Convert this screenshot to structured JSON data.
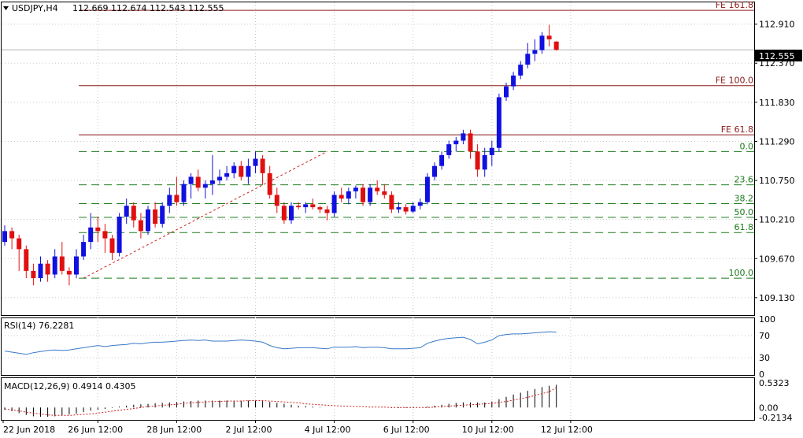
{
  "header": {
    "symbol": "USDJPY,H4",
    "ohlc": "112.669 112.674 112.543 112.555"
  },
  "last_price": "112.555",
  "colors": {
    "bull": "#1010e0",
    "bear": "#e01010",
    "fe": "#8b1a1a",
    "fib": "#1a7a1a",
    "rsi": "#3a78c8",
    "macd_signal": "#cc2222",
    "zigzag": "#cc2222",
    "grid": "#c8c8c8"
  },
  "chart_data": [
    {
      "type": "candlestick",
      "title": "USDJPY,H4",
      "ylim": [
        108.9,
        113.2
      ],
      "y_ticks": [
        "112.910",
        "112.370",
        "111.830",
        "111.290",
        "110.750",
        "110.210",
        "109.670",
        "109.130"
      ],
      "x_ticks": [
        "22 Jun 2018",
        "26 Jun 12:00",
        "28 Jun 12:00",
        "2 Jul 12:00",
        "4 Jul 12:00",
        "6 Jul 12:00",
        "10 Jul 12:00",
        "12 Jul 12:00"
      ],
      "candles": [
        [
          109.9,
          110.13,
          109.85,
          110.05
        ],
        [
          110.05,
          110.1,
          109.8,
          109.95
        ],
        [
          109.95,
          110.0,
          109.5,
          109.8
        ],
        [
          109.8,
          109.85,
          109.4,
          109.5
        ],
        [
          109.5,
          109.6,
          109.3,
          109.4
        ],
        [
          109.4,
          109.7,
          109.35,
          109.6
        ],
        [
          109.6,
          109.65,
          109.35,
          109.45
        ],
        [
          109.45,
          109.8,
          109.4,
          109.7
        ],
        [
          109.7,
          109.9,
          109.45,
          109.5
        ],
        [
          109.5,
          109.55,
          109.3,
          109.45
        ],
        [
          109.45,
          109.8,
          109.4,
          109.7
        ],
        [
          109.7,
          110.0,
          109.65,
          109.9
        ],
        [
          109.9,
          110.3,
          109.8,
          110.1
        ],
        [
          110.1,
          110.25,
          109.9,
          110.05
        ],
        [
          110.05,
          110.15,
          109.75,
          109.95
        ],
        [
          109.95,
          110.0,
          109.65,
          109.75
        ],
        [
          109.75,
          110.3,
          109.7,
          110.25
        ],
        [
          110.25,
          110.5,
          110.15,
          110.4
        ],
        [
          110.4,
          110.45,
          110.1,
          110.2
        ],
        [
          110.2,
          110.3,
          109.95,
          110.05
        ],
        [
          110.05,
          110.4,
          110.0,
          110.35
        ],
        [
          110.35,
          110.45,
          110.1,
          110.15
        ],
        [
          110.15,
          110.45,
          110.1,
          110.4
        ],
        [
          110.4,
          110.65,
          110.3,
          110.55
        ],
        [
          110.55,
          110.8,
          110.4,
          110.45
        ],
        [
          110.45,
          110.75,
          110.4,
          110.7
        ],
        [
          110.7,
          110.85,
          110.5,
          110.8
        ],
        [
          110.8,
          110.9,
          110.6,
          110.65
        ],
        [
          110.65,
          110.75,
          110.5,
          110.7
        ],
        [
          110.7,
          111.1,
          110.55,
          110.75
        ],
        [
          110.75,
          110.9,
          110.7,
          110.8
        ],
        [
          110.8,
          110.95,
          110.75,
          110.85
        ],
        [
          110.85,
          111.0,
          110.78,
          110.95
        ],
        [
          110.95,
          111.02,
          110.75,
          110.8
        ],
        [
          110.8,
          111.05,
          110.7,
          110.95
        ],
        [
          110.95,
          111.15,
          110.85,
          111.05
        ],
        [
          111.05,
          111.1,
          110.7,
          110.85
        ],
        [
          110.85,
          110.95,
          110.5,
          110.55
        ],
        [
          110.55,
          110.65,
          110.3,
          110.4
        ],
        [
          110.4,
          110.45,
          110.15,
          110.2
        ],
        [
          110.2,
          110.45,
          110.15,
          110.4
        ],
        [
          110.4,
          110.45,
          110.35,
          110.38
        ],
        [
          110.38,
          110.45,
          110.3,
          110.42
        ],
        [
          110.42,
          110.5,
          110.35,
          110.38
        ],
        [
          110.38,
          110.4,
          110.3,
          110.35
        ],
        [
          110.35,
          110.4,
          110.2,
          110.3
        ],
        [
          110.3,
          110.6,
          110.25,
          110.55
        ],
        [
          110.55,
          110.65,
          110.45,
          110.5
        ],
        [
          110.5,
          110.65,
          110.42,
          110.6
        ],
        [
          110.6,
          110.68,
          110.5,
          110.65
        ],
        [
          110.65,
          110.7,
          110.4,
          110.45
        ],
        [
          110.45,
          110.7,
          110.4,
          110.65
        ],
        [
          110.65,
          110.75,
          110.55,
          110.6
        ],
        [
          110.6,
          110.7,
          110.5,
          110.55
        ],
        [
          110.55,
          110.6,
          110.3,
          110.35
        ],
        [
          110.35,
          110.45,
          110.3,
          110.38
        ],
        [
          110.38,
          110.42,
          110.28,
          110.32
        ],
        [
          110.32,
          110.45,
          110.3,
          110.4
        ],
        [
          110.4,
          110.5,
          110.35,
          110.45
        ],
        [
          110.45,
          110.85,
          110.42,
          110.8
        ],
        [
          110.8,
          111.0,
          110.75,
          110.95
        ],
        [
          110.95,
          111.15,
          110.9,
          111.1
        ],
        [
          111.1,
          111.3,
          111.05,
          111.25
        ],
        [
          111.25,
          111.35,
          111.15,
          111.3
        ],
        [
          111.3,
          111.45,
          111.25,
          111.4
        ],
        [
          111.4,
          111.45,
          111.05,
          111.15
        ],
        [
          111.15,
          111.25,
          110.8,
          110.9
        ],
        [
          110.9,
          111.2,
          110.8,
          111.1
        ],
        [
          111.1,
          111.3,
          110.95,
          111.2
        ],
        [
          111.2,
          111.95,
          111.15,
          111.9
        ],
        [
          111.9,
          112.1,
          111.85,
          112.05
        ],
        [
          112.05,
          112.25,
          112.0,
          112.2
        ],
        [
          112.2,
          112.4,
          112.15,
          112.35
        ],
        [
          112.35,
          112.65,
          112.3,
          112.5
        ],
        [
          112.5,
          112.7,
          112.4,
          112.55
        ],
        [
          112.55,
          112.8,
          112.5,
          112.75
        ],
        [
          112.75,
          112.9,
          112.6,
          112.7
        ],
        [
          112.669,
          112.674,
          112.543,
          112.555
        ]
      ],
      "levels": [
        {
          "label": "FE 161.8",
          "value": 113.1,
          "kind": "fe"
        },
        {
          "label": "FE 100.0",
          "value": 112.06,
          "kind": "fe"
        },
        {
          "label": "FE 61.8",
          "value": 111.38,
          "kind": "fe"
        },
        {
          "label": "0.0",
          "value": 111.15,
          "kind": "fib"
        },
        {
          "label": "23.6",
          "value": 110.69,
          "kind": "fib"
        },
        {
          "label": "38.2",
          "value": 110.43,
          "kind": "fib"
        },
        {
          "label": "50.0",
          "value": 110.24,
          "kind": "fib"
        },
        {
          "label": "61.8",
          "value": 110.03,
          "kind": "fib"
        },
        {
          "label": "100.0",
          "value": 109.4,
          "kind": "fib"
        }
      ],
      "zigzag": [
        [
          11,
          109.4
        ],
        [
          45,
          111.15
        ]
      ],
      "current_price": 112.555
    },
    {
      "type": "line",
      "title": "RSI(14) 76.2281",
      "ylim": [
        0,
        100
      ],
      "y_ticks": [
        "100",
        "70",
        "30",
        "0"
      ],
      "values": [
        42,
        40,
        38,
        36,
        39,
        41,
        43,
        44,
        43,
        44,
        46,
        48,
        50,
        52,
        50,
        52,
        53,
        54,
        56,
        55,
        57,
        58,
        58,
        59,
        60,
        61,
        62,
        61,
        62,
        60,
        60,
        60,
        61,
        62,
        61,
        60,
        58,
        52,
        48,
        46,
        47,
        48,
        48,
        48,
        47,
        46,
        49,
        49,
        49,
        50,
        48,
        49,
        49,
        48,
        46,
        46,
        46,
        47,
        48,
        56,
        60,
        63,
        65,
        66,
        67,
        63,
        55,
        58,
        62,
        70,
        72,
        73,
        73,
        74,
        75,
        76,
        77,
        76.2281
      ]
    },
    {
      "type": "bar",
      "title": "MACD(12,26,9) 0.4914 0.4305",
      "y_ticks": [
        "0.5323",
        "0.00",
        "-0.2134"
      ],
      "ylim": [
        -0.25,
        0.6
      ],
      "values": [
        -0.05,
        -0.08,
        -0.12,
        -0.16,
        -0.19,
        -0.2,
        -0.2,
        -0.19,
        -0.17,
        -0.15,
        -0.13,
        -0.1,
        -0.07,
        -0.05,
        -0.03,
        -0.01,
        0.02,
        0.04,
        0.06,
        0.07,
        0.08,
        0.09,
        0.1,
        0.11,
        0.12,
        0.13,
        0.14,
        0.15,
        0.15,
        0.15,
        0.15,
        0.15,
        0.15,
        0.15,
        0.15,
        0.15,
        0.14,
        0.12,
        0.1,
        0.08,
        0.06,
        0.04,
        0.03,
        0.02,
        0.01,
        0.0,
        0.0,
        0.0,
        0.0,
        0.0,
        0.0,
        0.0,
        0.0,
        0.0,
        -0.01,
        -0.01,
        -0.01,
        -0.01,
        0.0,
        0.02,
        0.04,
        0.06,
        0.08,
        0.1,
        0.11,
        0.11,
        0.11,
        0.11,
        0.13,
        0.18,
        0.23,
        0.28,
        0.32,
        0.36,
        0.4,
        0.44,
        0.47,
        0.4914
      ],
      "signal": [
        -0.03,
        -0.05,
        -0.07,
        -0.1,
        -0.12,
        -0.14,
        -0.16,
        -0.17,
        -0.17,
        -0.17,
        -0.16,
        -0.15,
        -0.14,
        -0.12,
        -0.1,
        -0.08,
        -0.06,
        -0.04,
        -0.02,
        0.0,
        0.02,
        0.03,
        0.05,
        0.06,
        0.07,
        0.09,
        0.1,
        0.11,
        0.12,
        0.13,
        0.13,
        0.14,
        0.14,
        0.14,
        0.15,
        0.15,
        0.15,
        0.14,
        0.13,
        0.12,
        0.11,
        0.1,
        0.08,
        0.07,
        0.06,
        0.05,
        0.04,
        0.03,
        0.03,
        0.02,
        0.02,
        0.01,
        0.01,
        0.01,
        0.0,
        0.0,
        0.0,
        0.0,
        0.0,
        0.0,
        0.01,
        0.02,
        0.03,
        0.04,
        0.05,
        0.06,
        0.07,
        0.08,
        0.09,
        0.11,
        0.13,
        0.16,
        0.19,
        0.22,
        0.26,
        0.3,
        0.34,
        0.4305
      ]
    }
  ]
}
